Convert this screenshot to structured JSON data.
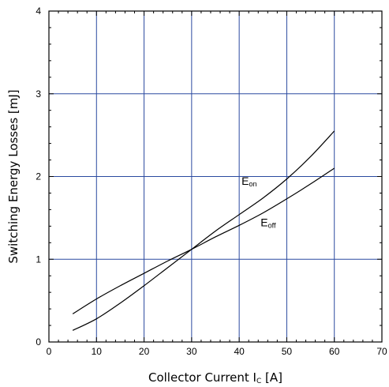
{
  "chart_data": {
    "type": "line",
    "xlabel": "Collector Current I",
    "xlabel_sub": "C",
    "xlabel_unit": " [A]",
    "ylabel": "Switching Energy Losses [mJ]",
    "xlim": [
      0,
      70
    ],
    "ylim": [
      0,
      4
    ],
    "xticks": [
      0,
      10,
      20,
      30,
      40,
      50,
      60,
      70
    ],
    "yticks": [
      0,
      1,
      2,
      3,
      4
    ],
    "grid": true,
    "series": [
      {
        "name": "E",
        "name_sub": "on",
        "x": [
          5,
          10,
          15,
          20,
          25,
          30,
          35,
          40,
          45,
          50,
          55,
          60
        ],
        "y": [
          0.14,
          0.28,
          0.47,
          0.68,
          0.9,
          1.12,
          1.34,
          1.54,
          1.74,
          1.97,
          2.24,
          2.55
        ],
        "label_at": [
          40.5,
          1.9
        ]
      },
      {
        "name": "E",
        "name_sub": "off",
        "x": [
          5,
          10,
          15,
          20,
          25,
          30,
          35,
          40,
          45,
          50,
          55,
          60
        ],
        "y": [
          0.34,
          0.52,
          0.68,
          0.83,
          0.98,
          1.12,
          1.27,
          1.41,
          1.56,
          1.73,
          1.91,
          2.1
        ],
        "label_at": [
          44.5,
          1.4
        ]
      }
    ],
    "colors": {
      "grid": "#2b4aa0",
      "line": "#000000",
      "frame": "#000000"
    }
  }
}
